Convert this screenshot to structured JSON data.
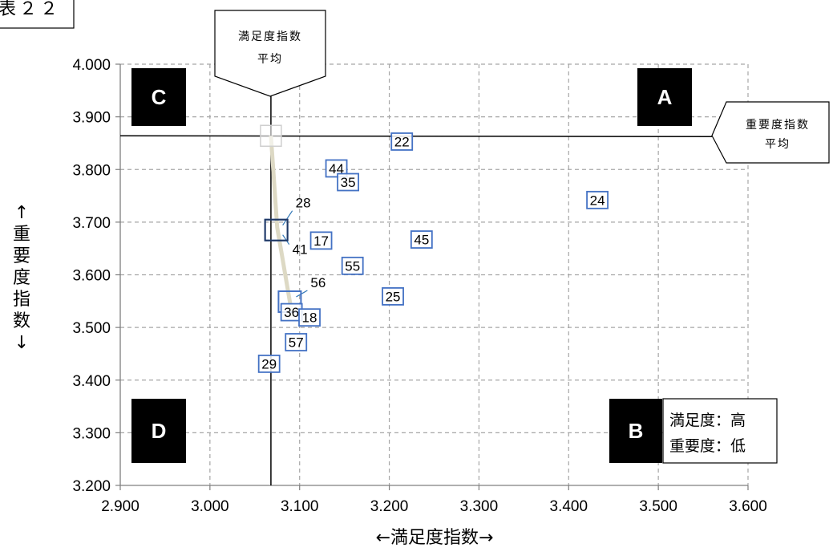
{
  "chart_data": {
    "type": "scatter",
    "figure_label": "表２２",
    "xlabel": "←満足度指数→",
    "ylabel": "↑重要度指数↓",
    "xlim": [
      2.9,
      3.6
    ],
    "ylim": [
      3.2,
      4.0
    ],
    "x_ticks": [
      "2.900",
      "3.000",
      "3.100",
      "3.200",
      "3.300",
      "3.400",
      "3.500",
      "3.600"
    ],
    "y_ticks": [
      "3.200",
      "3.300",
      "3.400",
      "3.500",
      "3.600",
      "3.700",
      "3.800",
      "3.900",
      "4.000"
    ],
    "grid": true,
    "averages": {
      "satisfaction": 3.068,
      "importance": 3.864,
      "satisfaction_label": [
        "満足度指数",
        "平均"
      ],
      "importance_label": [
        "重要度指数",
        "平均"
      ]
    },
    "quadrants": [
      "A",
      "B",
      "C",
      "D"
    ],
    "legend_b": [
      "満足度：高",
      "重要度：低"
    ],
    "points": [
      {
        "label": "22",
        "x": 3.214,
        "y": 3.853
      },
      {
        "label": "44",
        "x": 3.141,
        "y": 3.802
      },
      {
        "label": "35",
        "x": 3.154,
        "y": 3.776
      },
      {
        "label": "24",
        "x": 3.432,
        "y": 3.742
      },
      {
        "label": "28",
        "x": 3.074,
        "y": 3.685
      },
      {
        "label": "41",
        "x": 3.074,
        "y": 3.685
      },
      {
        "label": "17",
        "x": 3.124,
        "y": 3.665
      },
      {
        "label": "45",
        "x": 3.236,
        "y": 3.667
      },
      {
        "label": "55",
        "x": 3.159,
        "y": 3.617
      },
      {
        "label": "56",
        "x": 3.089,
        "y": 3.549
      },
      {
        "label": "25",
        "x": 3.204,
        "y": 3.559
      },
      {
        "label": "36",
        "x": 3.091,
        "y": 3.529
      },
      {
        "label": "18",
        "x": 3.111,
        "y": 3.519
      },
      {
        "label": "57",
        "x": 3.096,
        "y": 3.472
      },
      {
        "label": "29",
        "x": 3.066,
        "y": 3.431
      }
    ]
  }
}
